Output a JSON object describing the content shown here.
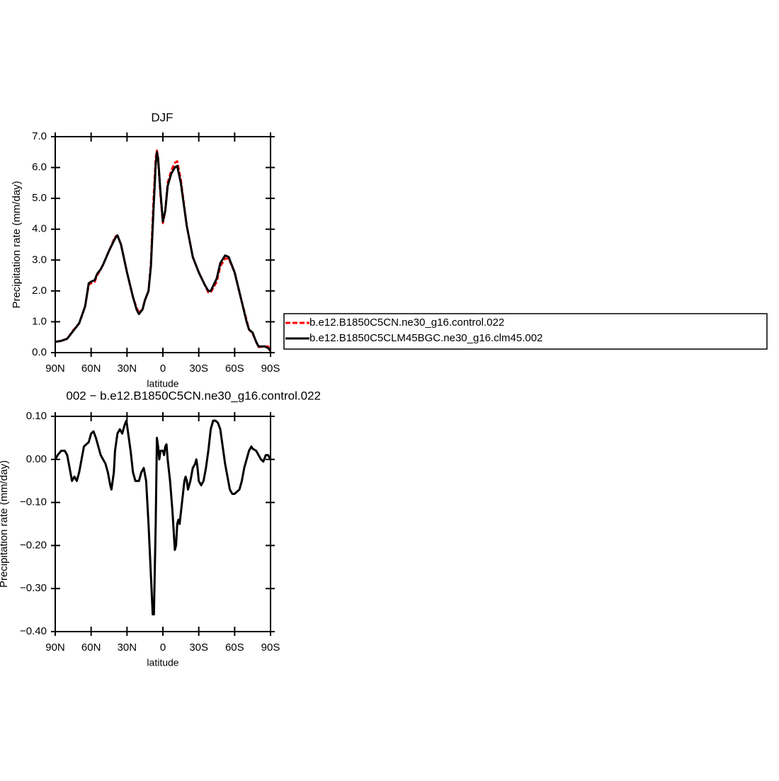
{
  "chart_data": [
    {
      "type": "line",
      "title": "DJF",
      "xlabel": "latitude",
      "ylabel": "Precipitation rate (mm/day)",
      "xlim": [
        90,
        -90
      ],
      "ylim": [
        0,
        7
      ],
      "xticks": [
        {
          "value": 90,
          "label": "90N"
        },
        {
          "value": 60,
          "label": "60N"
        },
        {
          "value": 30,
          "label": "30N"
        },
        0,
        {
          "value": -30,
          "label": "30S"
        },
        {
          "value": -60,
          "label": "60S"
        },
        {
          "value": -90,
          "label": "90S"
        }
      ],
      "yticks": [
        {
          "value": 0,
          "label": "0.0"
        },
        {
          "value": 1,
          "label": "1.0"
        },
        {
          "value": 2,
          "label": "2.0"
        },
        {
          "value": 3,
          "label": "3.0"
        },
        {
          "value": 4,
          "label": "4.0"
        },
        {
          "value": 5,
          "label": "5.0"
        },
        {
          "value": 6,
          "label": "6.0"
        },
        {
          "value": 7,
          "label": "7.0"
        }
      ],
      "x": [
        90,
        85,
        80,
        75,
        70,
        65,
        62,
        60,
        57,
        55,
        52,
        50,
        45,
        40,
        38,
        35,
        30,
        25,
        22,
        20,
        17,
        15,
        12,
        10,
        8,
        6,
        5,
        4,
        2,
        0,
        -2,
        -4,
        -7,
        -10,
        -12,
        -15,
        -20,
        -25,
        -30,
        -35,
        -38,
        -40,
        -45,
        -48,
        -52,
        -55,
        -60,
        -65,
        -70,
        -72,
        -75,
        -78,
        -80,
        -85,
        -88,
        -90
      ],
      "series": [
        {
          "name": "b.e12.B1850C5CN.ne30_g16.control.022",
          "color": "#ff0000",
          "line_style": "dashed",
          "values": [
            0.35,
            0.38,
            0.45,
            0.72,
            0.95,
            1.5,
            2.2,
            2.25,
            2.3,
            2.5,
            2.7,
            2.85,
            3.3,
            3.75,
            3.8,
            3.5,
            2.6,
            1.8,
            1.45,
            1.3,
            1.4,
            1.7,
            2.0,
            2.9,
            4.8,
            6.3,
            6.55,
            6.3,
            5.1,
            4.2,
            4.6,
            5.5,
            5.9,
            6.15,
            6.2,
            5.6,
            4.1,
            3.1,
            2.6,
            2.2,
            1.95,
            1.95,
            2.3,
            2.8,
            3.05,
            3.05,
            2.6,
            1.8,
            1.05,
            0.75,
            0.62,
            0.35,
            0.18,
            0.2,
            0.2,
            0.05
          ]
        },
        {
          "name": "b.e12.B1850C5CLM45BGC.ne30_g16.clm45.002",
          "color": "#000000",
          "line_style": "solid",
          "values": [
            0.35,
            0.38,
            0.45,
            0.7,
            0.95,
            1.5,
            2.25,
            2.3,
            2.35,
            2.55,
            2.7,
            2.85,
            3.3,
            3.7,
            3.8,
            3.5,
            2.6,
            1.8,
            1.4,
            1.25,
            1.4,
            1.7,
            2.0,
            2.8,
            4.5,
            6.1,
            6.5,
            6.3,
            5.2,
            4.25,
            4.6,
            5.4,
            5.8,
            6.0,
            6.05,
            5.5,
            4.1,
            3.1,
            2.6,
            2.2,
            2.0,
            2.0,
            2.4,
            2.9,
            3.15,
            3.1,
            2.6,
            1.8,
            1.0,
            0.75,
            0.65,
            0.35,
            0.2,
            0.2,
            0.15,
            0.05
          ]
        }
      ]
    },
    {
      "type": "line",
      "title": "002 − b.e12.B1850C5CN.ne30_g16.control.022",
      "xlabel": "latitude",
      "ylabel": "Precipitation rate (mm/day)",
      "xlim": [
        90,
        -90
      ],
      "ylim": [
        -0.4,
        0.1
      ],
      "xticks": [
        {
          "value": 90,
          "label": "90N"
        },
        {
          "value": 60,
          "label": "60N"
        },
        {
          "value": 30,
          "label": "30N"
        },
        0,
        {
          "value": -30,
          "label": "30S"
        },
        {
          "value": -60,
          "label": "60S"
        },
        {
          "value": -90,
          "label": "90S"
        }
      ],
      "yticks": [
        {
          "value": -0.4,
          "label": "−0.40"
        },
        {
          "value": -0.3,
          "label": "−0.30"
        },
        {
          "value": -0.2,
          "label": "−0.20"
        },
        {
          "value": -0.1,
          "label": "−0.10"
        },
        {
          "value": 0,
          "label": "0.00"
        },
        {
          "value": 0.1,
          "label": "0.10"
        }
      ],
      "x": [
        90,
        88,
        85,
        82,
        80,
        78,
        76,
        74,
        72,
        70,
        68,
        66,
        64,
        62,
        60,
        58,
        56,
        54,
        52,
        50,
        48,
        46,
        44,
        43,
        41,
        40,
        38,
        36,
        34,
        32,
        30.5,
        29,
        27,
        25,
        23,
        20,
        18,
        16,
        14,
        12,
        10,
        8.5,
        7.5,
        6,
        5,
        4,
        3,
        2,
        0,
        -1,
        -2,
        -3,
        -4,
        -6,
        -8,
        -10,
        -11,
        -12,
        -13,
        -14,
        -16,
        -18,
        -19,
        -20,
        -21,
        -23,
        -25,
        -27,
        -28,
        -29,
        -30,
        -32,
        -34,
        -36,
        -38,
        -40,
        -42,
        -44,
        -46,
        -48,
        -50,
        -52,
        -54,
        -56,
        -58,
        -60,
        -62,
        -64,
        -66,
        -68,
        -70,
        -72,
        -74,
        -75,
        -78,
        -80,
        -82,
        -84,
        -86,
        -88,
        -90
      ],
      "series": [
        {
          "color": "#000000",
          "line_style": "solid",
          "values": [
            0,
            0.01,
            0.02,
            0.02,
            0.01,
            -0.02,
            -0.05,
            -0.04,
            -0.05,
            -0.03,
            0,
            0.03,
            0.035,
            0.04,
            0.06,
            0.065,
            0.05,
            0.03,
            0.01,
            0,
            -0.01,
            -0.03,
            -0.06,
            -0.07,
            -0.03,
            0.02,
            0.06,
            0.07,
            0.06,
            0.08,
            0.09,
            0.06,
            0.02,
            -0.03,
            -0.05,
            -0.05,
            -0.03,
            -0.02,
            -0.05,
            -0.15,
            -0.27,
            -0.36,
            -0.36,
            -0.15,
            0.05,
            0.03,
            0,
            0.02,
            0.02,
            0.01,
            0.03,
            0.035,
            0,
            -0.05,
            -0.12,
            -0.21,
            -0.2,
            -0.15,
            -0.14,
            -0.15,
            -0.1,
            -0.05,
            -0.04,
            -0.05,
            -0.07,
            -0.05,
            -0.02,
            -0.01,
            0,
            -0.02,
            -0.05,
            -0.06,
            -0.05,
            -0.02,
            0.02,
            0.07,
            0.09,
            0.09,
            0.085,
            0.07,
            0.03,
            -0.01,
            -0.04,
            -0.07,
            -0.08,
            -0.08,
            -0.075,
            -0.07,
            -0.05,
            -0.02,
            0,
            0.02,
            0.03,
            0.025,
            0.02,
            0.01,
            0,
            -0.005,
            0.01,
            0.01,
            0
          ]
        }
      ]
    }
  ]
}
